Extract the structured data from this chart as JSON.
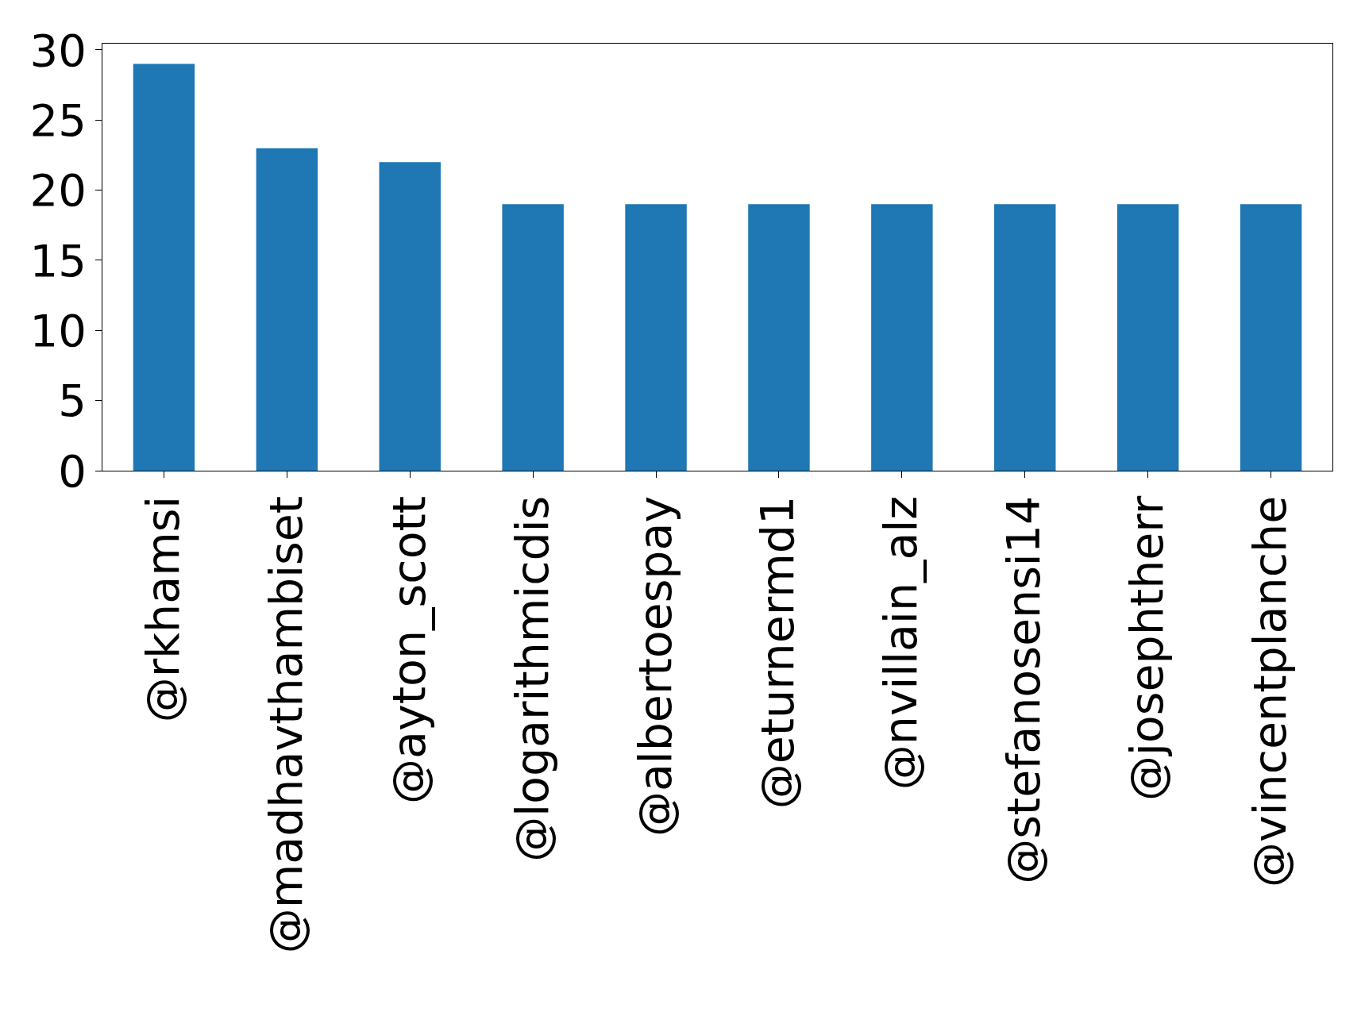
{
  "chart_data": {
    "type": "bar",
    "categories": [
      "@rkhamsi",
      "@madhavthambiset",
      "@ayton_scott",
      "@logarithmicdis",
      "@albertoespay",
      "@eturnermd1",
      "@nvillain_alz",
      "@stefanosensi14",
      "@josephtherr",
      "@vincentplanche"
    ],
    "values": [
      29,
      23,
      22,
      19,
      19,
      19,
      19,
      19,
      19,
      19
    ],
    "color": "#1f77b4",
    "ylim": [
      0,
      30.45
    ],
    "yticks": [
      0,
      5,
      10,
      15,
      20,
      25,
      30
    ]
  }
}
